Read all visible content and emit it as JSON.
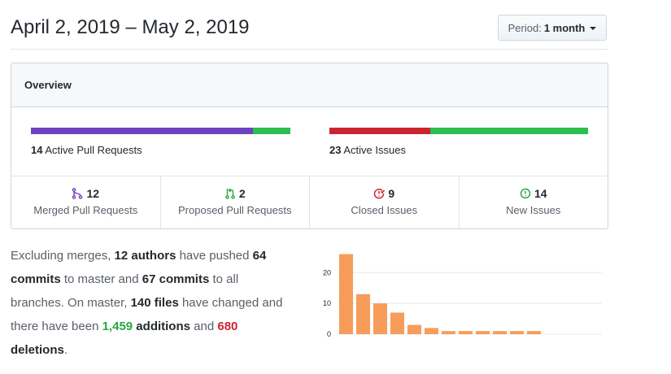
{
  "header": {
    "title": "April 2, 2019 – May 2, 2019",
    "period_label": "Period:",
    "period_value": "1 month"
  },
  "overview": {
    "title": "Overview",
    "pull_requests": {
      "label_count": "14",
      "label_text": "Active Pull Requests",
      "fraction_merged": 0.857,
      "merged_color": "#6f42c1",
      "open_color": "#2cbe4e"
    },
    "issues": {
      "label_count": "23",
      "label_text": "Active Issues",
      "fraction_closed": 0.391,
      "closed_color": "#cb2431",
      "open_color": "#2cbe4e"
    },
    "stats": [
      {
        "count": "12",
        "label": "Merged Pull Requests",
        "icon": "merge-icon",
        "color": "#6f42c1"
      },
      {
        "count": "2",
        "label": "Proposed Pull Requests",
        "icon": "pull-request-icon",
        "color": "#28a745"
      },
      {
        "count": "9",
        "label": "Closed Issues",
        "icon": "issue-closed-icon",
        "color": "#cb2431"
      },
      {
        "count": "14",
        "label": "New Issues",
        "icon": "issue-opened-icon",
        "color": "#28a745"
      }
    ]
  },
  "summary": {
    "p1": "Excluding merges, ",
    "authors": "12 authors",
    "p2": " have pushed ",
    "commits_master": "64 commits",
    "p3": " to master and ",
    "commits_all": "67 commits",
    "p4": " to all branches. On master, ",
    "files": "140 files",
    "p5": " have changed and there have been ",
    "additions_num": "1,459",
    "additions_word": " additions",
    "p6": " and ",
    "deletions_num": "680",
    "deletions_word": "deletions",
    "p7": "."
  },
  "chart_data": {
    "type": "bar",
    "values": [
      26,
      13,
      10,
      7,
      3,
      2,
      1,
      1,
      1,
      1,
      1,
      1
    ],
    "yticks": [
      0,
      10,
      20
    ],
    "ylim": [
      0,
      28
    ],
    "color": "#f79c5a"
  }
}
